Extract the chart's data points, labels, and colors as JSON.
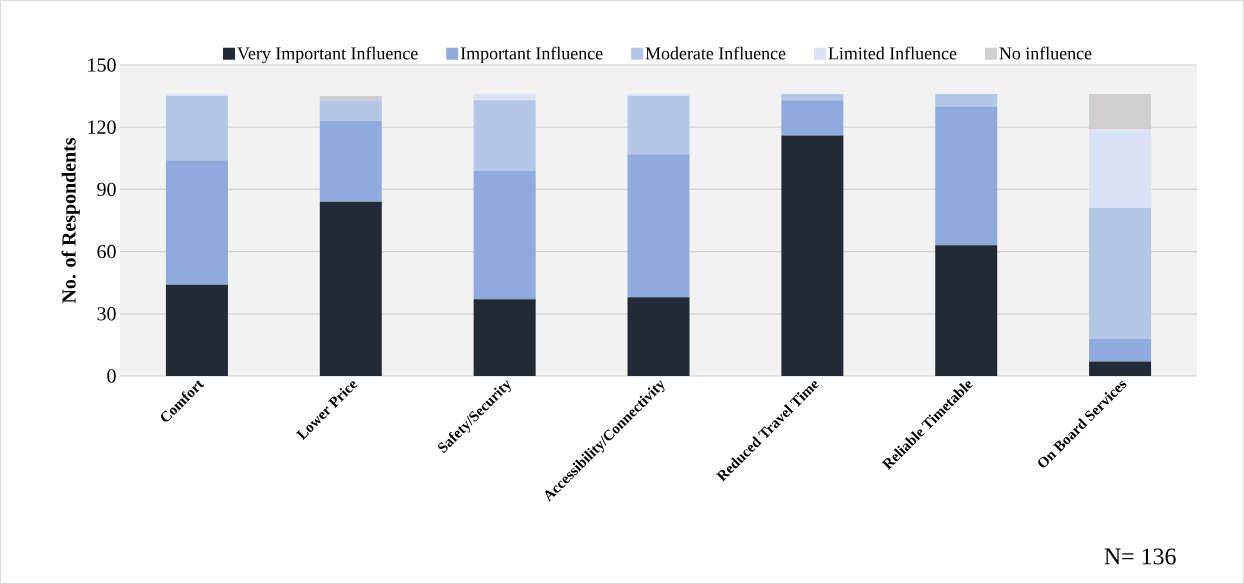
{
  "chart_data": {
    "type": "bar",
    "stacked": true,
    "ylabel": "No. of Respondents",
    "categories": [
      "Comfort",
      "Lower Price",
      "Safety/Security",
      "Accessibility/Connectivity",
      "Reduced Travel Time",
      "Reliable Timetable",
      "On Board Services"
    ],
    "series": [
      {
        "name": "Very Important Influence",
        "color": "#222a35",
        "values": [
          44,
          84,
          37,
          38,
          116,
          63,
          7
        ]
      },
      {
        "name": "Important Influence",
        "color": "#8faadc",
        "values": [
          60,
          39,
          62,
          69,
          17,
          67,
          11
        ]
      },
      {
        "name": "Moderate Influence",
        "color": "#b4c7e7",
        "values": [
          31,
          10,
          34,
          28,
          3,
          6,
          63
        ]
      },
      {
        "name": "Limited Influence",
        "color": "#dae3f3",
        "values": [
          1,
          0,
          3,
          1,
          0,
          0,
          38
        ]
      },
      {
        "name": "No influence",
        "color": "#d0cece",
        "values": [
          0,
          2,
          0,
          0,
          0,
          0,
          17
        ]
      }
    ],
    "ylim": [
      0,
      150
    ],
    "yticks": [
      0,
      30,
      60,
      90,
      120,
      150
    ],
    "grid": "y",
    "legend": "top",
    "annotations": [
      "N= 136"
    ]
  }
}
